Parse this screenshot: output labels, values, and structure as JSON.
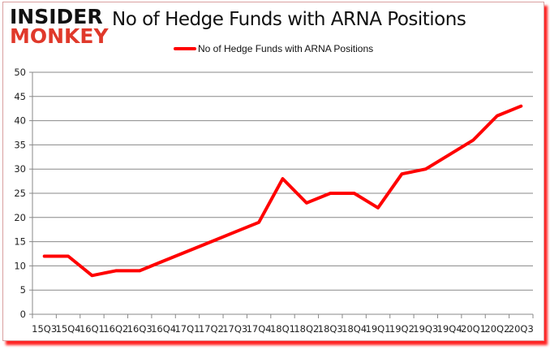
{
  "brand": {
    "line1": "INSIDER",
    "line2": "MONKEY"
  },
  "chart_data": {
    "type": "line",
    "title": "No of Hedge Funds with ARNA Positions",
    "xlabel": "",
    "ylabel": "",
    "ylim": [
      0,
      50
    ],
    "yticks": [
      0,
      5,
      10,
      15,
      20,
      25,
      30,
      35,
      40,
      45,
      50
    ],
    "grid": true,
    "legend_position": "top",
    "categories": [
      "15Q3",
      "15Q4",
      "16Q1",
      "16Q2",
      "16Q3",
      "16Q4",
      "17Q1",
      "17Q2",
      "17Q3",
      "17Q4",
      "18Q1",
      "18Q2",
      "18Q3",
      "18Q4",
      "19Q1",
      "19Q2",
      "19Q3",
      "19Q4",
      "20Q1",
      "20Q2",
      "20Q3"
    ],
    "series": [
      {
        "name": "No of Hedge Funds with ARNA Positions",
        "color": "#ff0000",
        "values": [
          12,
          12,
          8,
          9,
          9,
          11,
          13,
          15,
          17,
          19,
          28,
          23,
          25,
          25,
          22,
          29,
          30,
          33,
          36,
          41,
          43
        ]
      }
    ]
  }
}
